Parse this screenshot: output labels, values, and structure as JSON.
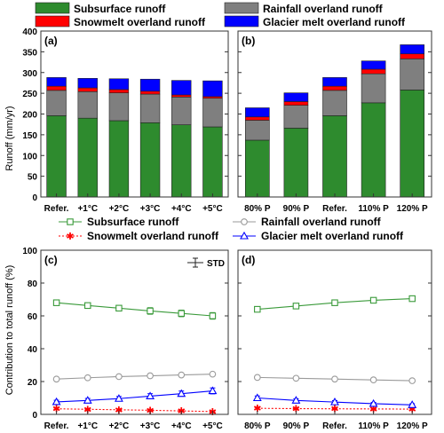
{
  "colors": {
    "subsurface": "#2e8b2e",
    "rainfall": "#7f7f7f",
    "snowmelt": "#ff0000",
    "glacier": "#0000ff"
  },
  "chart_data": [
    {
      "type": "bar",
      "panel": "(a)",
      "stacked": true,
      "categories": [
        "Refer.",
        "+1°C",
        "+2°C",
        "+3°C",
        "+4°C",
        "+5°C"
      ],
      "ylabel": "Runoff (mm/yr)",
      "ylim": [
        0,
        400
      ],
      "yticks": [
        0,
        50,
        100,
        150,
        200,
        250,
        300,
        350,
        400
      ],
      "grid": false,
      "legend_position": "top",
      "series": [
        {
          "name": "Subsurface runoff",
          "values": [
            196,
            190,
            184,
            179,
            174,
            169
          ]
        },
        {
          "name": "Rainfall overland runoff",
          "values": [
            61,
            64,
            67,
            69,
            67,
            69
          ]
        },
        {
          "name": "Snowmelt overland runoff",
          "values": [
            10,
            9,
            8,
            7,
            5,
            4
          ]
        },
        {
          "name": "Glacier melt overland runoff",
          "values": [
            21,
            23,
            26,
            29,
            35,
            38
          ]
        }
      ]
    },
    {
      "type": "bar",
      "panel": "(b)",
      "stacked": true,
      "categories": [
        "80% P",
        "90% P",
        "Refer.",
        "110% P",
        "120% P"
      ],
      "ylim": [
        0,
        400
      ],
      "yticks": [
        0,
        50,
        100,
        150,
        200,
        250,
        300,
        350,
        400
      ],
      "grid": false,
      "series": [
        {
          "name": "Subsurface runoff",
          "values": [
            137,
            166,
            196,
            227,
            258
          ]
        },
        {
          "name": "Rainfall overland runoff",
          "values": [
            48,
            55,
            61,
            70,
            75
          ]
        },
        {
          "name": "Snowmelt overland runoff",
          "values": [
            8,
            9,
            10,
            11,
            12
          ]
        },
        {
          "name": "Glacier melt overland runoff",
          "values": [
            22,
            21,
            21,
            20,
            22
          ]
        }
      ]
    },
    {
      "type": "line",
      "panel": "(c)",
      "categories": [
        "Refer.",
        "+1°C",
        "+2°C",
        "+3°C",
        "+4°C",
        "+5°C"
      ],
      "ylabel": "Contribution to total runoff (%)",
      "ylim": [
        0,
        100
      ],
      "yticks": [
        0,
        20,
        40,
        60,
        80,
        100
      ],
      "grid": false,
      "errorbar_label": "STD",
      "legend_position": "top",
      "series": [
        {
          "name": "Subsurface runoff",
          "marker": "square",
          "values": [
            68,
            66.3,
            64.7,
            63,
            61.5,
            60
          ],
          "std": [
            1.5,
            1.5,
            1.5,
            2,
            2,
            2
          ]
        },
        {
          "name": "Rainfall overland runoff",
          "marker": "circle",
          "values": [
            21.5,
            22.3,
            23,
            23.5,
            24,
            24.5
          ],
          "std": [
            0.5,
            0.5,
            0.5,
            0.5,
            0.5,
            0.5
          ]
        },
        {
          "name": "Snowmelt overland runoff",
          "marker": "star",
          "values": [
            3.4,
            3.1,
            2.8,
            2.5,
            2.1,
            1.7
          ],
          "std": [
            0.4,
            0.4,
            0.4,
            0.3,
            0.3,
            0.3
          ]
        },
        {
          "name": "Glacier melt overland runoff",
          "marker": "triangle",
          "values": [
            7.6,
            8.5,
            9.6,
            11.1,
            12.6,
            14.3
          ],
          "std": [
            1,
            1.2,
            1.3,
            1.5,
            1.6,
            1.8
          ]
        }
      ]
    },
    {
      "type": "line",
      "panel": "(d)",
      "categories": [
        "80% P",
        "90% P",
        "Refer.",
        "110% P",
        "120% P"
      ],
      "ylim": [
        0,
        100
      ],
      "yticks": [
        0,
        20,
        40,
        60,
        80,
        100
      ],
      "grid": false,
      "series": [
        {
          "name": "Subsurface runoff",
          "marker": "square",
          "values": [
            64,
            66,
            68,
            69.5,
            70.5
          ],
          "std": [
            1.5,
            1.5,
            1.5,
            1.5,
            1.5
          ]
        },
        {
          "name": "Rainfall overland runoff",
          "marker": "circle",
          "values": [
            22.5,
            22,
            21.5,
            21,
            20.5
          ],
          "std": [
            0.5,
            0.5,
            0.5,
            0.5,
            0.5
          ]
        },
        {
          "name": "Snowmelt overland runoff",
          "marker": "star",
          "values": [
            3.7,
            3.5,
            3.4,
            3.3,
            3.2
          ],
          "std": [
            0.4,
            0.4,
            0.4,
            0.4,
            0.4
          ]
        },
        {
          "name": "Glacier melt overland runoff",
          "marker": "triangle",
          "values": [
            10,
            8.5,
            7.5,
            6.5,
            5.8
          ],
          "std": [
            1.2,
            1,
            0.9,
            0.8,
            0.7
          ]
        }
      ]
    }
  ]
}
